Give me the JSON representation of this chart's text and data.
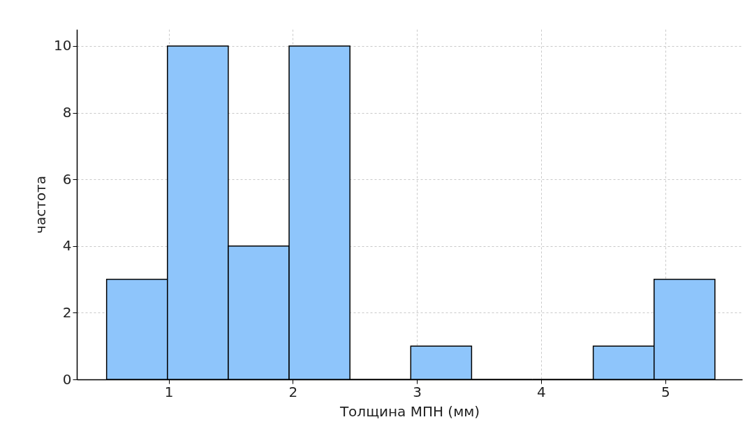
{
  "chart_data": {
    "type": "histogram",
    "xlabel": "Толщина МПН (мм)",
    "ylabel": "частота",
    "bins": [
      0.5,
      0.99,
      1.48,
      1.97,
      2.46,
      2.95,
      3.44,
      3.93,
      4.42,
      4.91,
      5.4
    ],
    "values": [
      3,
      10,
      4,
      10,
      0,
      1,
      0,
      0,
      1,
      3
    ],
    "color": "#8ec5fb",
    "xlim": [
      0.26,
      5.62
    ],
    "xticks": [
      1,
      2,
      3,
      4,
      5
    ],
    "ylim": [
      0,
      10.5
    ],
    "yticks": [
      0,
      2,
      4,
      6,
      8,
      10
    ],
    "grid": true
  }
}
